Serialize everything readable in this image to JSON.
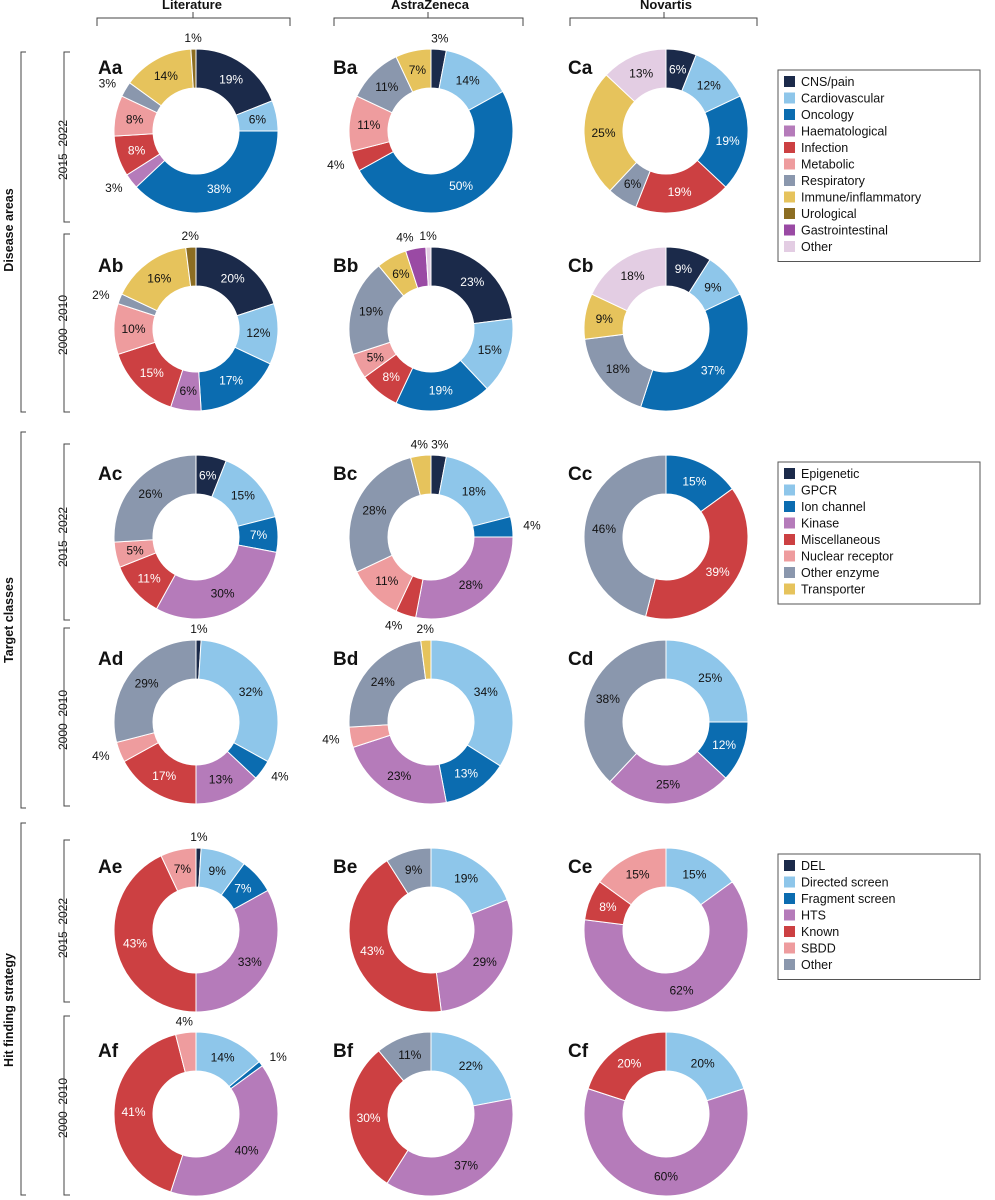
{
  "columns": [
    "Literature",
    "AstraZeneca",
    "Novartis"
  ],
  "sections": [
    "Disease areas",
    "Target classes",
    "Hit finding strategy"
  ],
  "periods": [
    "2015–2022",
    "2000–2010"
  ],
  "legends": [
    {
      "section": "Disease areas",
      "items": [
        {
          "label": "CNS/pain",
          "color": "#1b2a4a"
        },
        {
          "label": "Cardiovascular",
          "color": "#8ec6ea"
        },
        {
          "label": "Oncology",
          "color": "#0b6cb0"
        },
        {
          "label": "Haematological",
          "color": "#b57bba"
        },
        {
          "label": "Infection",
          "color": "#cc4042"
        },
        {
          "label": "Metabolic",
          "color": "#ee9c9e"
        },
        {
          "label": "Respiratory",
          "color": "#8a97ad"
        },
        {
          "label": "Immune/inflammatory",
          "color": "#e6c35c"
        },
        {
          "label": "Urological",
          "color": "#8c6d22"
        },
        {
          "label": "Gastrointestinal",
          "color": "#9a4aa4"
        },
        {
          "label": "Other",
          "color": "#e3cde3"
        }
      ]
    },
    {
      "section": "Target classes",
      "items": [
        {
          "label": "Epigenetic",
          "color": "#1b2a4a"
        },
        {
          "label": "GPCR",
          "color": "#8ec6ea"
        },
        {
          "label": "Ion channel",
          "color": "#0b6cb0"
        },
        {
          "label": "Kinase",
          "color": "#b57bba"
        },
        {
          "label": "Miscellaneous",
          "color": "#cc4042"
        },
        {
          "label": "Nuclear receptor",
          "color": "#ee9c9e"
        },
        {
          "label": "Other enzyme",
          "color": "#8a97ad"
        },
        {
          "label": "Transporter",
          "color": "#e6c35c"
        }
      ]
    },
    {
      "section": "Hit finding strategy",
      "items": [
        {
          "label": "DEL",
          "color": "#1b2a4a"
        },
        {
          "label": "Directed screen",
          "color": "#8ec6ea"
        },
        {
          "label": "Fragment screen",
          "color": "#0b6cb0"
        },
        {
          "label": "HTS",
          "color": "#b57bba"
        },
        {
          "label": "Known",
          "color": "#cc4042"
        },
        {
          "label": "SBDD",
          "color": "#ee9c9e"
        },
        {
          "label": "Other",
          "color": "#8a97ad"
        }
      ]
    }
  ],
  "chart_data": [
    {
      "type": "pie",
      "id": "Aa",
      "title": "Aa",
      "column": "Literature",
      "section": "Disease areas",
      "period": "2015–2022",
      "slices": [
        {
          "label": "CNS/pain",
          "value": 19,
          "text": "19%"
        },
        {
          "label": "Cardiovascular",
          "value": 6,
          "text": "6%"
        },
        {
          "label": "Oncology",
          "value": 38,
          "text": "38%"
        },
        {
          "label": "Haematological",
          "value": 3,
          "text": "3%"
        },
        {
          "label": "Infection",
          "value": 8,
          "text": "8%"
        },
        {
          "label": "Metabolic",
          "value": 8,
          "text": "8%"
        },
        {
          "label": "Respiratory",
          "value": 3,
          "text": "3%"
        },
        {
          "label": "Immune/inflammatory",
          "value": 14,
          "text": "14%"
        },
        {
          "label": "Urological",
          "value": 1,
          "text": "1%"
        }
      ]
    },
    {
      "type": "pie",
      "id": "Ab",
      "title": "Ab",
      "column": "Literature",
      "section": "Disease areas",
      "period": "2000–2010",
      "slices": [
        {
          "label": "CNS/pain",
          "value": 20,
          "text": "20%"
        },
        {
          "label": "Cardiovascular",
          "value": 12,
          "text": "12%"
        },
        {
          "label": "Oncology",
          "value": 17,
          "text": "17%"
        },
        {
          "label": "Haematological",
          "value": 6,
          "text": "6%"
        },
        {
          "label": "Infection",
          "value": 15,
          "text": "15%"
        },
        {
          "label": "Metabolic",
          "value": 10,
          "text": "10%"
        },
        {
          "label": "Respiratory",
          "value": 2,
          "text": "2%"
        },
        {
          "label": "Immune/inflammatory",
          "value": 16,
          "text": "16%"
        },
        {
          "label": "Urological",
          "value": 2,
          "text": "2%"
        }
      ]
    },
    {
      "type": "pie",
      "id": "Ac",
      "title": "Ac",
      "column": "Literature",
      "section": "Target classes",
      "period": "2015–2022",
      "slices": [
        {
          "label": "Epigenetic",
          "value": 6,
          "text": "6%"
        },
        {
          "label": "GPCR",
          "value": 15,
          "text": "15%"
        },
        {
          "label": "Ion channel",
          "value": 7,
          "text": "7%"
        },
        {
          "label": "Kinase",
          "value": 30,
          "text": "30%"
        },
        {
          "label": "Miscellaneous",
          "value": 11,
          "text": "11%"
        },
        {
          "label": "Nuclear receptor",
          "value": 5,
          "text": "5%"
        },
        {
          "label": "Other enzyme",
          "value": 26,
          "text": "26%"
        }
      ]
    },
    {
      "type": "pie",
      "id": "Ad",
      "title": "Ad",
      "column": "Literature",
      "section": "Target classes",
      "period": "2000–2010",
      "slices": [
        {
          "label": "Epigenetic",
          "value": 1,
          "text": "1%"
        },
        {
          "label": "GPCR",
          "value": 32,
          "text": "32%"
        },
        {
          "label": "Ion channel",
          "value": 4,
          "text": "4%"
        },
        {
          "label": "Kinase",
          "value": 13,
          "text": "13%"
        },
        {
          "label": "Miscellaneous",
          "value": 17,
          "text": "17%"
        },
        {
          "label": "Nuclear receptor",
          "value": 4,
          "text": "4%"
        },
        {
          "label": "Other enzyme",
          "value": 29,
          "text": "29%"
        }
      ]
    },
    {
      "type": "pie",
      "id": "Ae",
      "title": "Ae",
      "column": "Literature",
      "section": "Hit finding strategy",
      "period": "2015–2022",
      "slices": [
        {
          "label": "DEL",
          "value": 1,
          "text": "1%"
        },
        {
          "label": "Directed screen",
          "value": 9,
          "text": "9%"
        },
        {
          "label": "Fragment screen",
          "value": 7,
          "text": "7%"
        },
        {
          "label": "HTS",
          "value": 33,
          "text": "33%"
        },
        {
          "label": "Known",
          "value": 43,
          "text": "43%"
        },
        {
          "label": "SBDD",
          "value": 7,
          "text": "7%"
        }
      ]
    },
    {
      "type": "pie",
      "id": "Af",
      "title": "Af",
      "column": "Literature",
      "section": "Hit finding strategy",
      "period": "2000–2010",
      "slices": [
        {
          "label": "Directed screen",
          "value": 14,
          "text": "14%"
        },
        {
          "label": "Fragment screen",
          "value": 1,
          "text": "1%"
        },
        {
          "label": "HTS",
          "value": 40,
          "text": "40%"
        },
        {
          "label": "Known",
          "value": 41,
          "text": "41%"
        },
        {
          "label": "SBDD",
          "value": 4,
          "text": "4%"
        }
      ]
    },
    {
      "type": "pie",
      "id": "Ba",
      "title": "Ba",
      "column": "AstraZeneca",
      "section": "Disease areas",
      "period": "2015–2022",
      "slices": [
        {
          "label": "CNS/pain",
          "value": 3,
          "text": "3%"
        },
        {
          "label": "Cardiovascular",
          "value": 14,
          "text": "14%"
        },
        {
          "label": "Oncology",
          "value": 50,
          "text": "50%"
        },
        {
          "label": "Infection",
          "value": 4,
          "text": "4%"
        },
        {
          "label": "Metabolic",
          "value": 11,
          "text": "11%"
        },
        {
          "label": "Respiratory",
          "value": 11,
          "text": "11%"
        },
        {
          "label": "Immune/inflammatory",
          "value": 7,
          "text": "7%"
        }
      ]
    },
    {
      "type": "pie",
      "id": "Bb",
      "title": "Bb",
      "column": "AstraZeneca",
      "section": "Disease areas",
      "period": "2000–2010",
      "slices": [
        {
          "label": "CNS/pain",
          "value": 23,
          "text": "23%"
        },
        {
          "label": "Cardiovascular",
          "value": 15,
          "text": "15%"
        },
        {
          "label": "Oncology",
          "value": 19,
          "text": "19%"
        },
        {
          "label": "Infection",
          "value": 8,
          "text": "8%"
        },
        {
          "label": "Metabolic",
          "value": 5,
          "text": "5%"
        },
        {
          "label": "Respiratory",
          "value": 19,
          "text": "19%"
        },
        {
          "label": "Immune/inflammatory",
          "value": 6,
          "text": "6%"
        },
        {
          "label": "Gastrointestinal",
          "value": 4,
          "text": "4%"
        },
        {
          "label": "Other",
          "value": 1,
          "text": "1%"
        }
      ]
    },
    {
      "type": "pie",
      "id": "Bc",
      "title": "Bc",
      "column": "AstraZeneca",
      "section": "Target classes",
      "period": "2015–2022",
      "slices": [
        {
          "label": "Epigenetic",
          "value": 3,
          "text": "3%"
        },
        {
          "label": "GPCR",
          "value": 18,
          "text": "18%"
        },
        {
          "label": "Ion channel",
          "value": 4,
          "text": "4%"
        },
        {
          "label": "Kinase",
          "value": 28,
          "text": "28%"
        },
        {
          "label": "Miscellaneous",
          "value": 4,
          "text": "4%"
        },
        {
          "label": "Nuclear receptor",
          "value": 11,
          "text": "11%"
        },
        {
          "label": "Other enzyme",
          "value": 28,
          "text": "28%"
        },
        {
          "label": "Transporter",
          "value": 4,
          "text": "4%"
        }
      ]
    },
    {
      "type": "pie",
      "id": "Bd",
      "title": "Bd",
      "column": "AstraZeneca",
      "section": "Target classes",
      "period": "2000–2010",
      "slices": [
        {
          "label": "GPCR",
          "value": 34,
          "text": "34%"
        },
        {
          "label": "Ion channel",
          "value": 13,
          "text": "13%"
        },
        {
          "label": "Kinase",
          "value": 23,
          "text": "23%"
        },
        {
          "label": "Nuclear receptor",
          "value": 4,
          "text": "4%"
        },
        {
          "label": "Other enzyme",
          "value": 24,
          "text": "24%"
        },
        {
          "label": "Transporter",
          "value": 2,
          "text": "2%"
        }
      ]
    },
    {
      "type": "pie",
      "id": "Be",
      "title": "Be",
      "column": "AstraZeneca",
      "section": "Hit finding strategy",
      "period": "2015–2022",
      "slices": [
        {
          "label": "Directed screen",
          "value": 19,
          "text": "19%"
        },
        {
          "label": "HTS",
          "value": 29,
          "text": "29%"
        },
        {
          "label": "Known",
          "value": 43,
          "text": "43%"
        },
        {
          "label": "Other",
          "value": 9,
          "text": "9%"
        }
      ]
    },
    {
      "type": "pie",
      "id": "Bf",
      "title": "Bf",
      "column": "AstraZeneca",
      "section": "Hit finding strategy",
      "period": "2000–2010",
      "slices": [
        {
          "label": "Directed screen",
          "value": 22,
          "text": "22%"
        },
        {
          "label": "HTS",
          "value": 37,
          "text": "37%"
        },
        {
          "label": "Known",
          "value": 30,
          "text": "30%"
        },
        {
          "label": "Other",
          "value": 11,
          "text": "11%"
        }
      ]
    },
    {
      "type": "pie",
      "id": "Ca",
      "title": "Ca",
      "column": "Novartis",
      "section": "Disease areas",
      "period": "2015–2022",
      "slices": [
        {
          "label": "CNS/pain",
          "value": 6,
          "text": "6%"
        },
        {
          "label": "Cardiovascular",
          "value": 12,
          "text": "12%"
        },
        {
          "label": "Oncology",
          "value": 19,
          "text": "19%"
        },
        {
          "label": "Infection",
          "value": 19,
          "text": "19%"
        },
        {
          "label": "Respiratory",
          "value": 6,
          "text": "6%"
        },
        {
          "label": "Immune/inflammatory",
          "value": 25,
          "text": "25%"
        },
        {
          "label": "Other",
          "value": 13,
          "text": "13%"
        }
      ]
    },
    {
      "type": "pie",
      "id": "Cb",
      "title": "Cb",
      "column": "Novartis",
      "section": "Disease areas",
      "period": "2000–2010",
      "slices": [
        {
          "label": "CNS/pain",
          "value": 9,
          "text": "9%"
        },
        {
          "label": "Cardiovascular",
          "value": 9,
          "text": "9%"
        },
        {
          "label": "Oncology",
          "value": 37,
          "text": "37%"
        },
        {
          "label": "Respiratory",
          "value": 18,
          "text": "18%"
        },
        {
          "label": "Immune/inflammatory",
          "value": 9,
          "text": "9%"
        },
        {
          "label": "Other",
          "value": 18,
          "text": "18%"
        }
      ]
    },
    {
      "type": "pie",
      "id": "Cc",
      "title": "Cc",
      "column": "Novartis",
      "section": "Target classes",
      "period": "2015–2022",
      "slices": [
        {
          "label": "Ion channel",
          "value": 15,
          "text": "15%"
        },
        {
          "label": "Miscellaneous",
          "value": 39,
          "text": "39%"
        },
        {
          "label": "Other enzyme",
          "value": 46,
          "text": "46%"
        }
      ]
    },
    {
      "type": "pie",
      "id": "Cd",
      "title": "Cd",
      "column": "Novartis",
      "section": "Target classes",
      "period": "2000–2010",
      "slices": [
        {
          "label": "GPCR",
          "value": 25,
          "text": "25%"
        },
        {
          "label": "Ion channel",
          "value": 12,
          "text": "12%"
        },
        {
          "label": "Kinase",
          "value": 25,
          "text": "25%"
        },
        {
          "label": "Other enzyme",
          "value": 38,
          "text": "38%"
        }
      ]
    },
    {
      "type": "pie",
      "id": "Ce",
      "title": "Ce",
      "column": "Novartis",
      "section": "Hit finding strategy",
      "period": "2015–2022",
      "slices": [
        {
          "label": "Directed screen",
          "value": 15,
          "text": "15%"
        },
        {
          "label": "HTS",
          "value": 62,
          "text": "62%"
        },
        {
          "label": "Known",
          "value": 8,
          "text": "8%"
        },
        {
          "label": "SBDD",
          "value": 15,
          "text": "15%"
        }
      ]
    },
    {
      "type": "pie",
      "id": "Cf",
      "title": "Cf",
      "column": "Novartis",
      "section": "Hit finding strategy",
      "period": "2000–2010",
      "slices": [
        {
          "label": "Directed screen",
          "value": 20,
          "text": "20%"
        },
        {
          "label": "HTS",
          "value": 60,
          "text": "60%"
        },
        {
          "label": "Known",
          "value": 20,
          "text": "20%"
        }
      ]
    }
  ]
}
